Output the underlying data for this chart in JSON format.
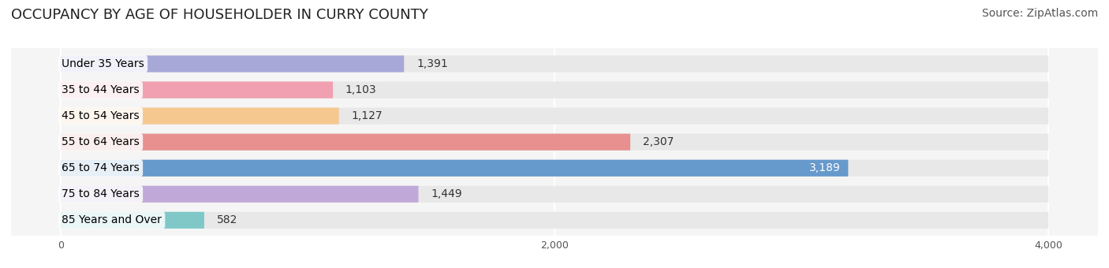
{
  "title": "OCCUPANCY BY AGE OF HOUSEHOLDER IN CURRY COUNTY",
  "source": "Source: ZipAtlas.com",
  "categories": [
    "Under 35 Years",
    "35 to 44 Years",
    "45 to 54 Years",
    "55 to 64 Years",
    "65 to 74 Years",
    "75 to 84 Years",
    "85 Years and Over"
  ],
  "values": [
    1391,
    1103,
    1127,
    2307,
    3189,
    1449,
    582
  ],
  "bar_colors": [
    "#a8a8d8",
    "#f0a0b0",
    "#f5c890",
    "#e89090",
    "#6699cc",
    "#c0a8d8",
    "#80c8c8"
  ],
  "bar_bg_color": "#f0f0f0",
  "label_bg_color": "#ffffff",
  "xlim": [
    -200,
    4200
  ],
  "xticks": [
    0,
    2000,
    4000
  ],
  "bar_height": 0.62,
  "title_fontsize": 13,
  "source_fontsize": 10,
  "label_fontsize": 10,
  "value_fontsize": 10,
  "background_color": "#ffffff",
  "grid_color": "#ffffff"
}
